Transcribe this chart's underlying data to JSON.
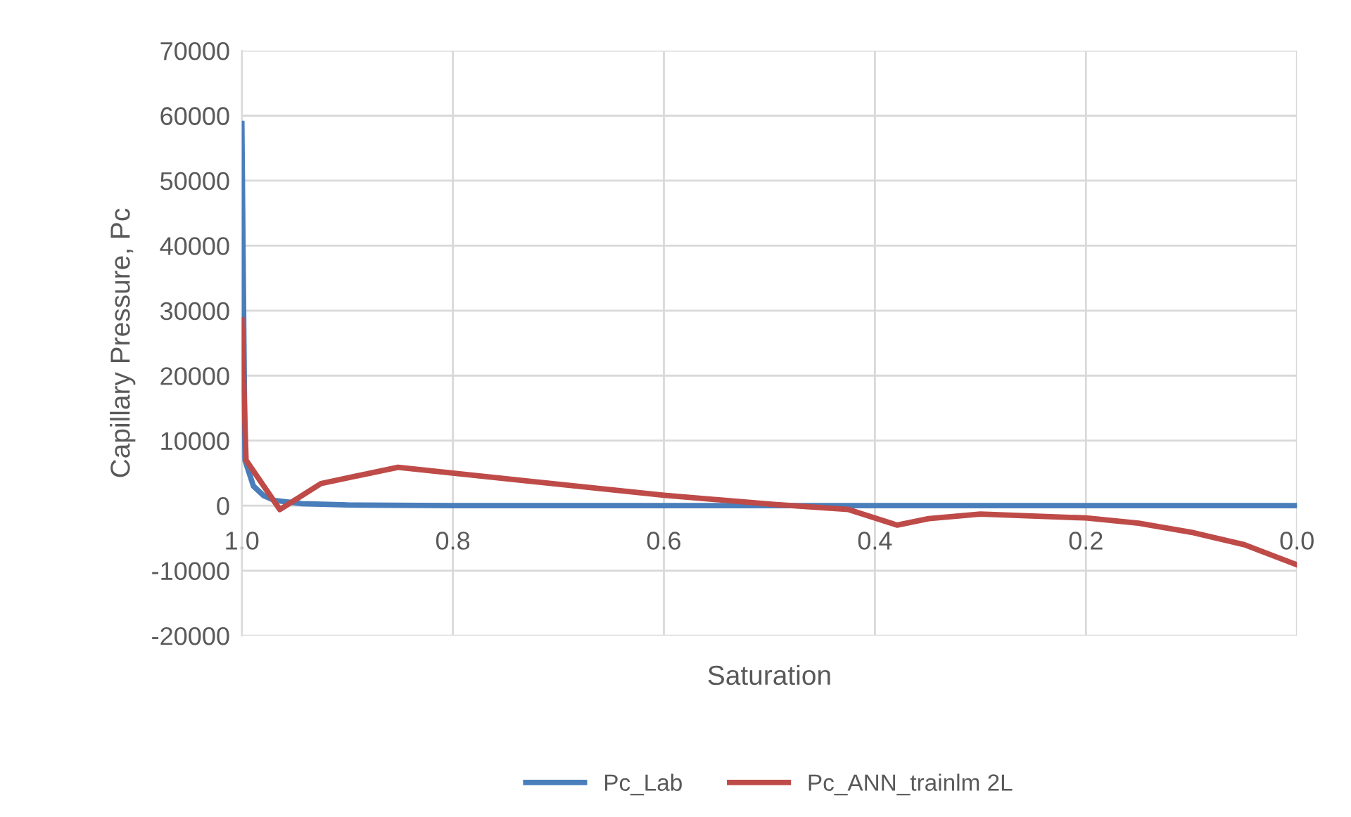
{
  "chart_data": {
    "type": "line",
    "xlabel": "Saturation",
    "ylabel": "Capillary Pressure, Pc",
    "xlim": [
      1.0,
      0.0
    ],
    "xticks": [
      {
        "value": 1.0,
        "label": "1.0"
      },
      {
        "value": 0.8,
        "label": "0.8"
      },
      {
        "value": 0.6,
        "label": "0.6"
      },
      {
        "value": 0.4,
        "label": "0.4"
      },
      {
        "value": 0.2,
        "label": "0.2"
      },
      {
        "value": 0.0,
        "label": "0.0"
      }
    ],
    "ylim": [
      -20000,
      70000
    ],
    "yticks": [
      -20000,
      -10000,
      0,
      10000,
      20000,
      30000,
      40000,
      50000,
      60000,
      70000
    ],
    "grid": true,
    "legend": "bottom",
    "marker": "none",
    "line_style": "solid",
    "series": [
      {
        "name": "Pc_Lab",
        "color": "#4a7ebb",
        "x": [
          1.0,
          0.997,
          0.989,
          0.979,
          0.969,
          0.943,
          0.9,
          0.8,
          0.6,
          0.4,
          0.2,
          0.0
        ],
        "values": [
          58800,
          7000,
          3000,
          1500,
          800,
          300,
          100,
          0,
          0,
          0,
          0,
          0
        ]
      },
      {
        "name": "Pc_ANN_trainlm 2L",
        "color": "#be4b48",
        "x": [
          1.0,
          0.996,
          0.964,
          0.925,
          0.852,
          0.8,
          0.6,
          0.496,
          0.425,
          0.379,
          0.349,
          0.3,
          0.2,
          0.15,
          0.1,
          0.05,
          0.0
        ],
        "values": [
          28600,
          7000,
          -600,
          3400,
          5900,
          5000,
          1600,
          200,
          -600,
          -3000,
          -2000,
          -1300,
          -1900,
          -2700,
          -4100,
          -6000,
          -9100
        ]
      }
    ]
  }
}
